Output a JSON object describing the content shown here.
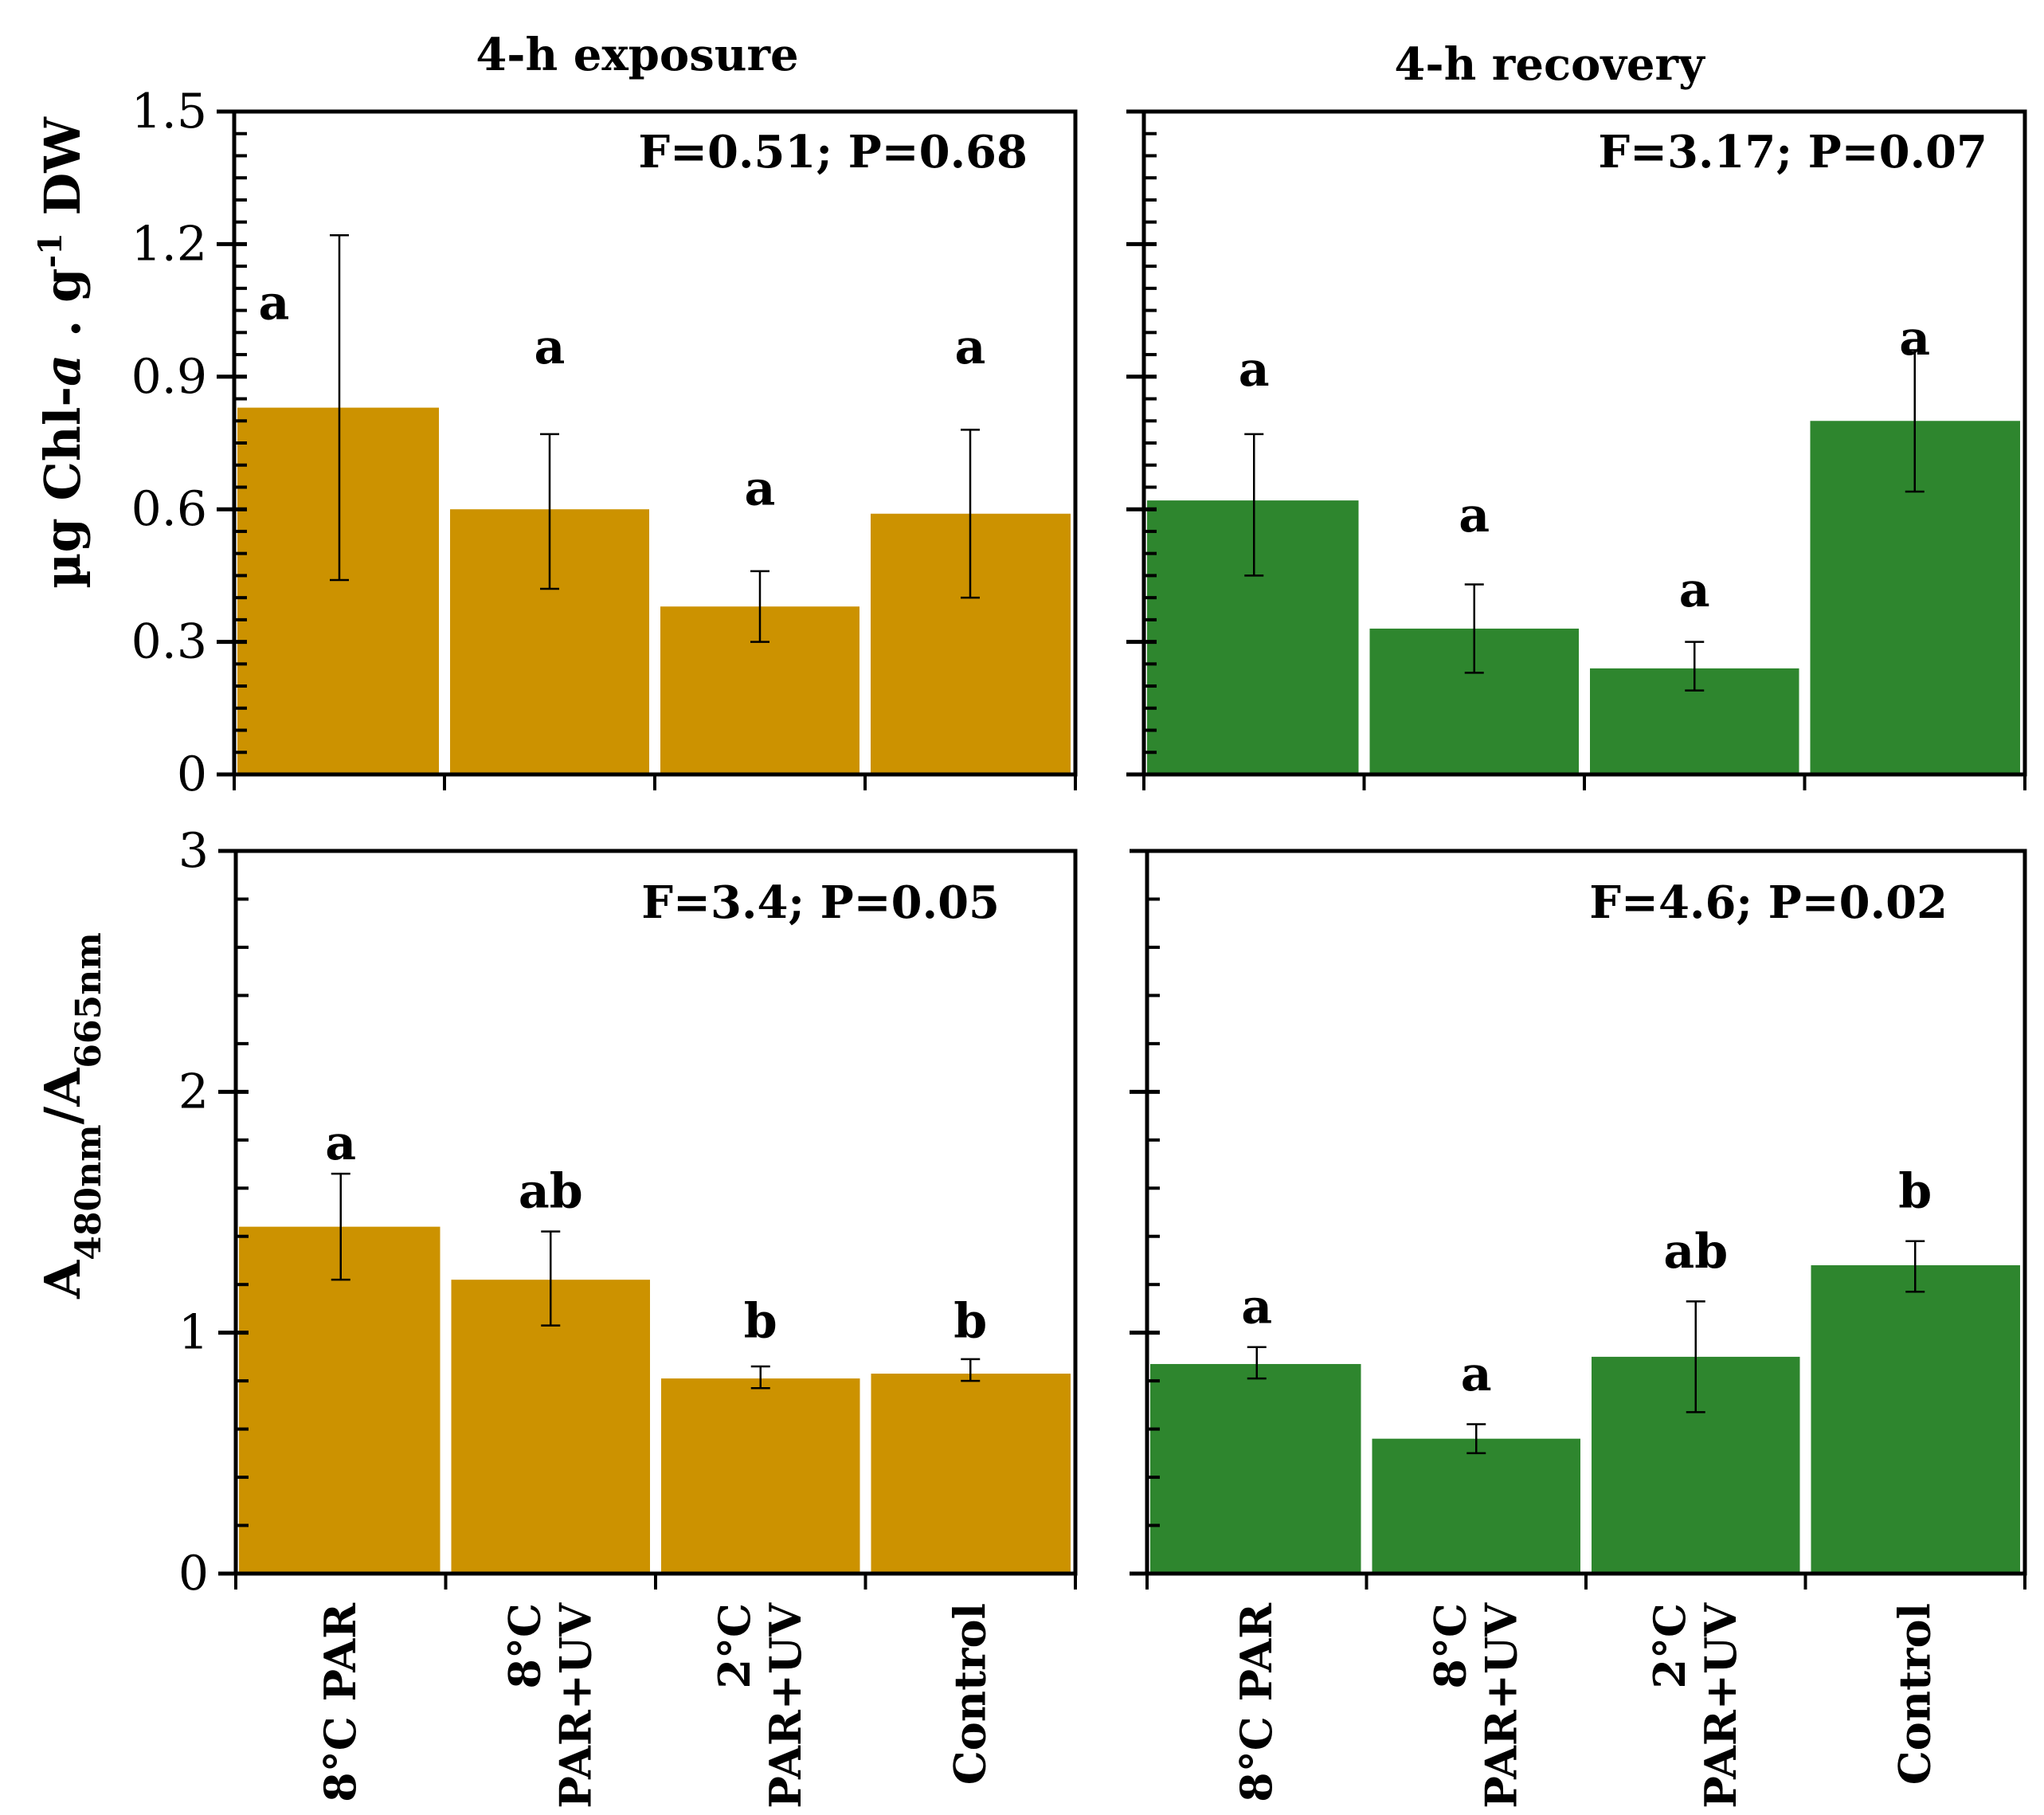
{
  "columns": [
    "4-h exposure",
    "4-h recovery"
  ],
  "colors": {
    "exposure": "#CC9200",
    "recovery": "#2E862E"
  },
  "row_ylabels": [
    {
      "parts": [
        {
          "t": "µg  Chl-"
        },
        {
          "t": "a",
          "italic": true
        },
        {
          "t": " . g"
        },
        {
          "t": "-1",
          "sup": true
        },
        {
          "t": " DW"
        }
      ]
    },
    {
      "parts": [
        {
          "t": "A"
        },
        {
          "t": "480nm",
          "sub": true
        },
        {
          "t": "/A"
        },
        {
          "t": "665nm",
          "sub": true
        }
      ]
    }
  ],
  "categories": [
    [
      "8°C PAR"
    ],
    [
      "8°C",
      "PAR+UV"
    ],
    [
      "2°C",
      "PAR+UV"
    ],
    [
      "Control"
    ]
  ],
  "chart_data": [
    {
      "type": "bar",
      "panel": "top-left",
      "title": "4-h exposure",
      "ylabel": "µg Chl-a . g-1 DW",
      "ylim": [
        0,
        1.5
      ],
      "ticks": [
        "0",
        "0.3",
        "0.6",
        "0.9",
        "1.2",
        "1.5"
      ],
      "tick_values": [
        0,
        0.3,
        0.6,
        0.9,
        1.2,
        1.5
      ],
      "minor_step": 0.05,
      "stat": "F=0.51; P=0.68",
      "color": "#CC9200",
      "categories": [
        "8°C PAR",
        "8°C PAR+UV",
        "2°C PAR+UV",
        "Control"
      ],
      "values": [
        0.83,
        0.6,
        0.38,
        0.59
      ],
      "err_low": [
        0.44,
        0.42,
        0.3,
        0.4
      ],
      "err_high": [
        1.22,
        0.77,
        0.46,
        0.78
      ],
      "letters": [
        "a",
        "a",
        "a",
        "a"
      ],
      "letter_y": [
        1.03,
        0.93,
        0.61,
        0.93
      ]
    },
    {
      "type": "bar",
      "panel": "top-right",
      "title": "4-h recovery",
      "ylim": [
        0,
        1.5
      ],
      "ticks": [],
      "tick_values": [
        0,
        0.3,
        0.6,
        0.9,
        1.2,
        1.5
      ],
      "minor_step": 0.05,
      "stat": "F=3.17; P=0.07",
      "color": "#2E862E",
      "categories": [
        "8°C PAR",
        "8°C PAR+UV",
        "2°C PAR+UV",
        "Control"
      ],
      "values": [
        0.62,
        0.33,
        0.24,
        0.8
      ],
      "err_low": [
        0.45,
        0.23,
        0.19,
        0.64
      ],
      "err_high": [
        0.77,
        0.43,
        0.3,
        0.96
      ],
      "letters": [
        "a",
        "a",
        "a",
        "a"
      ],
      "letter_y": [
        0.88,
        0.55,
        0.38,
        0.95
      ]
    },
    {
      "type": "bar",
      "panel": "bottom-left",
      "ylabel": "A480nm/A665nm",
      "ylim": [
        0,
        3
      ],
      "ticks": [
        "0",
        "1",
        "2",
        "3"
      ],
      "tick_values": [
        0,
        1,
        2,
        3
      ],
      "minor_step": 0.2,
      "stat": "F=3.4; P=0.05",
      "color": "#CC9200",
      "categories": [
        "8°C PAR",
        "8°C PAR+UV",
        "2°C PAR+UV",
        "Control"
      ],
      "values": [
        1.44,
        1.22,
        0.81,
        0.83
      ],
      "err_low": [
        1.22,
        1.03,
        0.77,
        0.8
      ],
      "err_high": [
        1.66,
        1.42,
        0.86,
        0.89
      ],
      "letters": [
        "a",
        "ab",
        "b",
        "b"
      ],
      "letter_y": [
        1.72,
        1.52,
        0.98,
        0.98
      ]
    },
    {
      "type": "bar",
      "panel": "bottom-right",
      "ylim": [
        0,
        3
      ],
      "ticks": [],
      "tick_values": [
        0,
        1,
        2,
        3
      ],
      "minor_step": 0.2,
      "stat": "F=4.6; P=0.02",
      "color": "#2E862E",
      "categories": [
        "8°C PAR",
        "8°C PAR+UV",
        "2°C PAR+UV",
        "Control"
      ],
      "values": [
        0.87,
        0.56,
        0.9,
        1.28
      ],
      "err_low": [
        0.81,
        0.5,
        0.67,
        1.17
      ],
      "err_high": [
        0.94,
        0.62,
        1.13,
        1.38
      ],
      "letters": [
        "a",
        "a",
        "ab",
        "b"
      ],
      "letter_y": [
        1.04,
        0.76,
        1.27,
        1.52
      ]
    }
  ]
}
